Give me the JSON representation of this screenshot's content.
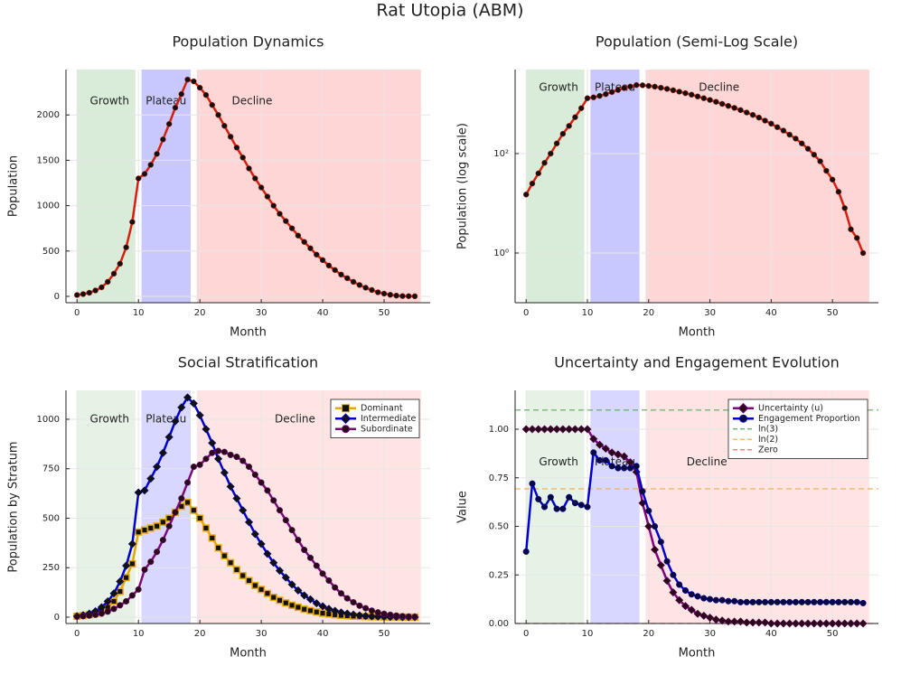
{
  "title": "Rat Utopia (ABM)",
  "chart_data": [
    {
      "type": "line",
      "title": "Population Dynamics",
      "xlabel": "Month",
      "ylabel": "Population",
      "xlim": [
        -1.8,
        57.5
      ],
      "xticks": [
        0,
        10,
        20,
        30,
        40,
        50
      ],
      "ylim": [
        -70,
        2500
      ],
      "yticks": [
        0,
        500,
        1000,
        1500,
        2000
      ],
      "grid": true,
      "phases": [
        {
          "name": "Growth",
          "start": 0,
          "end": 9.5,
          "color": "#d9ecd9",
          "label_at": [
            5.3,
            2150
          ]
        },
        {
          "name": "Plateau",
          "start": 10.5,
          "end": 18.5,
          "color": "#c8c8ff",
          "label_at": [
            14.5,
            2150
          ]
        },
        {
          "name": "Decline",
          "start": 19.5,
          "end": 56,
          "color": "#ffd6d6",
          "label_at": [
            28.5,
            2150
          ]
        }
      ],
      "x": [
        0,
        1,
        2,
        3,
        4,
        5,
        6,
        7,
        8,
        9,
        10,
        11,
        12,
        13,
        14,
        15,
        16,
        17,
        18,
        19,
        20,
        21,
        22,
        23,
        24,
        25,
        26,
        27,
        28,
        29,
        30,
        31,
        32,
        33,
        34,
        35,
        36,
        37,
        38,
        39,
        40,
        41,
        42,
        43,
        44,
        45,
        46,
        47,
        48,
        49,
        50,
        51,
        52,
        53,
        54,
        55
      ],
      "series": [
        {
          "name": "Population",
          "color": "#d4200c",
          "marker": "circle",
          "marker_color": "#111111",
          "values": [
            15,
            25,
            40,
            65,
            100,
            160,
            250,
            360,
            540,
            820,
            1300,
            1350,
            1450,
            1570,
            1730,
            1900,
            2080,
            2230,
            2390,
            2370,
            2300,
            2220,
            2110,
            2000,
            1880,
            1760,
            1640,
            1530,
            1410,
            1300,
            1200,
            1100,
            1000,
            910,
            830,
            750,
            670,
            600,
            530,
            460,
            400,
            340,
            290,
            240,
            200,
            160,
            125,
            95,
            70,
            45,
            30,
            17,
            8,
            3,
            2,
            1
          ]
        }
      ]
    },
    {
      "type": "line",
      "title": "Population (Semi-Log Scale)",
      "xlabel": "Month",
      "ylabel": "Population (log scale)",
      "log_y": true,
      "xlim": [
        -1.8,
        57.5
      ],
      "xticks": [
        0,
        10,
        20,
        30,
        40,
        50
      ],
      "ylim": [
        0.1,
        4900
      ],
      "yticks": [
        {
          "value": 1,
          "label": "10⁰"
        },
        {
          "value": 100,
          "label": "10²"
        }
      ],
      "grid": true,
      "phases": [
        {
          "name": "Growth",
          "start": 0,
          "end": 9.5,
          "color": "#d9ecd9",
          "label_at": [
            5.3,
            2100
          ]
        },
        {
          "name": "Plateau",
          "start": 10.5,
          "end": 18.5,
          "color": "#c8c8ff",
          "label_at": [
            14.5,
            2100
          ]
        },
        {
          "name": "Decline",
          "start": 19.5,
          "end": 56,
          "color": "#ffd6d6",
          "label_at": [
            31.5,
            2100
          ]
        }
      ],
      "x": [
        0,
        1,
        2,
        3,
        4,
        5,
        6,
        7,
        8,
        9,
        10,
        11,
        12,
        13,
        14,
        15,
        16,
        17,
        18,
        19,
        20,
        21,
        22,
        23,
        24,
        25,
        26,
        27,
        28,
        29,
        30,
        31,
        32,
        33,
        34,
        35,
        36,
        37,
        38,
        39,
        40,
        41,
        42,
        43,
        44,
        45,
        46,
        47,
        48,
        49,
        50,
        51,
        52,
        53,
        54,
        55
      ],
      "series": [
        {
          "name": "Population",
          "color": "#d4200c",
          "marker": "circle",
          "marker_color": "#111111",
          "values": [
            15,
            25,
            40,
            65,
            100,
            160,
            250,
            360,
            540,
            820,
            1300,
            1350,
            1450,
            1570,
            1730,
            1900,
            2080,
            2230,
            2390,
            2370,
            2300,
            2220,
            2110,
            2000,
            1880,
            1760,
            1640,
            1530,
            1410,
            1300,
            1200,
            1100,
            1000,
            910,
            830,
            750,
            670,
            600,
            530,
            460,
            400,
            340,
            290,
            240,
            200,
            160,
            125,
            95,
            70,
            45,
            30,
            17,
            8,
            3,
            2,
            1
          ]
        }
      ]
    },
    {
      "type": "line",
      "title": "Social Stratification",
      "xlabel": "Month",
      "ylabel": "Population by Stratum",
      "legend": "top right",
      "xlim": [
        -1.8,
        57.5
      ],
      "xticks": [
        0,
        10,
        20,
        30,
        40,
        50
      ],
      "ylim": [
        -32,
        1146
      ],
      "yticks": [
        0,
        250,
        500,
        750,
        1000
      ],
      "grid": true,
      "phases": [
        {
          "name": "Growth",
          "start": 0,
          "end": 9.5,
          "color": "#e5f2e5",
          "label_at": [
            5.3,
            1000
          ]
        },
        {
          "name": "Plateau",
          "start": 10.5,
          "end": 18.5,
          "color": "#d7d7ff",
          "label_at": [
            14.5,
            1000
          ]
        },
        {
          "name": "Decline",
          "start": 19.5,
          "end": 56,
          "color": "#ffe4e4",
          "label_at": [
            35.5,
            1000
          ]
        }
      ],
      "x": [
        0,
        1,
        2,
        3,
        4,
        5,
        6,
        7,
        8,
        9,
        10,
        11,
        12,
        13,
        14,
        15,
        16,
        17,
        18,
        19,
        20,
        21,
        22,
        23,
        24,
        25,
        26,
        27,
        28,
        29,
        30,
        31,
        32,
        33,
        34,
        35,
        36,
        37,
        38,
        39,
        40,
        41,
        42,
        43,
        44,
        45,
        46,
        47,
        48,
        49,
        50,
        51,
        52,
        53,
        54,
        55
      ],
      "series": [
        {
          "name": "Dominant",
          "color": "#e6a800",
          "marker": "square",
          "marker_color": "#111111",
          "values": [
            5,
            8,
            12,
            18,
            30,
            50,
            80,
            130,
            200,
            270,
            430,
            440,
            450,
            460,
            480,
            500,
            530,
            560,
            580,
            540,
            500,
            450,
            400,
            350,
            310,
            275,
            240,
            210,
            185,
            160,
            140,
            120,
            100,
            85,
            72,
            60,
            50,
            40,
            33,
            26,
            20,
            16,
            12,
            9,
            7,
            5,
            4,
            3,
            2,
            2,
            1,
            1,
            1,
            0,
            0,
            0
          ]
        },
        {
          "name": "Intermediate",
          "color": "#0000cc",
          "marker": "diamond",
          "marker_color": "#111111",
          "values": [
            5,
            10,
            18,
            30,
            50,
            80,
            120,
            180,
            260,
            370,
            630,
            640,
            700,
            760,
            830,
            910,
            990,
            1060,
            1110,
            1080,
            1020,
            950,
            880,
            800,
            730,
            660,
            600,
            540,
            480,
            420,
            370,
            320,
            275,
            235,
            200,
            165,
            135,
            110,
            90,
            70,
            55,
            42,
            32,
            24,
            18,
            13,
            9,
            6,
            4,
            3,
            2,
            1,
            1,
            0,
            0,
            0
          ]
        },
        {
          "name": "Subordinate",
          "color": "#7a0a7a",
          "marker": "circle",
          "marker_color": "#2a0a1a",
          "values": [
            3,
            5,
            8,
            12,
            18,
            28,
            42,
            60,
            80,
            110,
            140,
            240,
            280,
            330,
            390,
            460,
            530,
            600,
            680,
            760,
            770,
            800,
            830,
            840,
            835,
            820,
            810,
            790,
            760,
            720,
            680,
            640,
            590,
            540,
            490,
            440,
            390,
            340,
            300,
            260,
            220,
            185,
            150,
            120,
            95,
            75,
            58,
            45,
            33,
            24,
            17,
            12,
            8,
            5,
            3,
            2
          ]
        }
      ]
    },
    {
      "type": "line",
      "title": "Uncertainty and Engagement Evolution",
      "xlabel": "Month",
      "ylabel": "Value",
      "legend": "top right",
      "xlim": [
        -1.8,
        57.5
      ],
      "xticks": [
        0,
        10,
        20,
        30,
        40,
        50
      ],
      "ylim": [
        0,
        1.2
      ],
      "yticks": [
        {
          "value": 0,
          "label": "0.00"
        },
        {
          "value": 0.25,
          "label": "0.25"
        },
        {
          "value": 0.5,
          "label": "0.50"
        },
        {
          "value": 0.75,
          "label": "0.75"
        },
        {
          "value": 1,
          "label": "1.00"
        }
      ],
      "grid": true,
      "phases": [
        {
          "name": "Growth",
          "start": 0,
          "end": 9.5,
          "color": "#e5f2e5",
          "label_at": [
            5.3,
            0.83
          ]
        },
        {
          "name": "Plateau",
          "start": 10.5,
          "end": 18.5,
          "color": "#d7d7ff",
          "label_at": [
            14.5,
            0.83
          ]
        },
        {
          "name": "Decline",
          "start": 19.5,
          "end": 56,
          "color": "#ffe4e4",
          "label_at": [
            29.5,
            0.83
          ]
        }
      ],
      "x": [
        0,
        1,
        2,
        3,
        4,
        5,
        6,
        7,
        8,
        9,
        10,
        11,
        12,
        13,
        14,
        15,
        16,
        17,
        18,
        19,
        20,
        21,
        22,
        23,
        24,
        25,
        26,
        27,
        28,
        29,
        30,
        31,
        32,
        33,
        34,
        35,
        36,
        37,
        38,
        39,
        40,
        41,
        42,
        43,
        44,
        45,
        46,
        47,
        48,
        49,
        50,
        51,
        52,
        53,
        54,
        55
      ],
      "series": [
        {
          "name": "Uncertainty (u)",
          "color": "#800080",
          "marker": "diamond",
          "marker_color": "#2a0a1a",
          "values": [
            1,
            1,
            1,
            1,
            1,
            1,
            1,
            1,
            1,
            1,
            1,
            0.95,
            0.92,
            0.9,
            0.88,
            0.87,
            0.86,
            0.83,
            0.78,
            0.62,
            0.5,
            0.38,
            0.3,
            0.22,
            0.16,
            0.12,
            0.09,
            0.07,
            0.05,
            0.04,
            0.03,
            0.02,
            0.015,
            0.01,
            0.01,
            0.01,
            0.005,
            0.005,
            0.005,
            0.005,
            0,
            0,
            0,
            0,
            0,
            0,
            0,
            0,
            0,
            0,
            0,
            0,
            0,
            0,
            0,
            0
          ]
        },
        {
          "name": "Engagement Proportion",
          "color": "#0000cc",
          "marker": "circle",
          "marker_color": "#0a0a3a",
          "values": [
            0.37,
            0.72,
            0.64,
            0.6,
            0.65,
            0.59,
            0.59,
            0.65,
            0.62,
            0.61,
            0.6,
            0.88,
            0.84,
            0.84,
            0.81,
            0.8,
            0.8,
            0.8,
            0.81,
            0.68,
            0.58,
            0.5,
            0.42,
            0.32,
            0.25,
            0.2,
            0.17,
            0.15,
            0.14,
            0.13,
            0.125,
            0.12,
            0.12,
            0.115,
            0.115,
            0.11,
            0.11,
            0.11,
            0.11,
            0.11,
            0.11,
            0.11,
            0.11,
            0.11,
            0.11,
            0.11,
            0.11,
            0.11,
            0.11,
            0.11,
            0.11,
            0.11,
            0.11,
            0.11,
            0.11,
            0.105
          ]
        }
      ],
      "hlines": [
        {
          "name": "ln(3)",
          "value": 1.0986,
          "color": "#5aaa5a"
        },
        {
          "name": "ln(2)",
          "value": 0.6931,
          "color": "#f0b060"
        },
        {
          "name": "Zero",
          "value": 0,
          "color": "#e87070"
        }
      ]
    }
  ]
}
